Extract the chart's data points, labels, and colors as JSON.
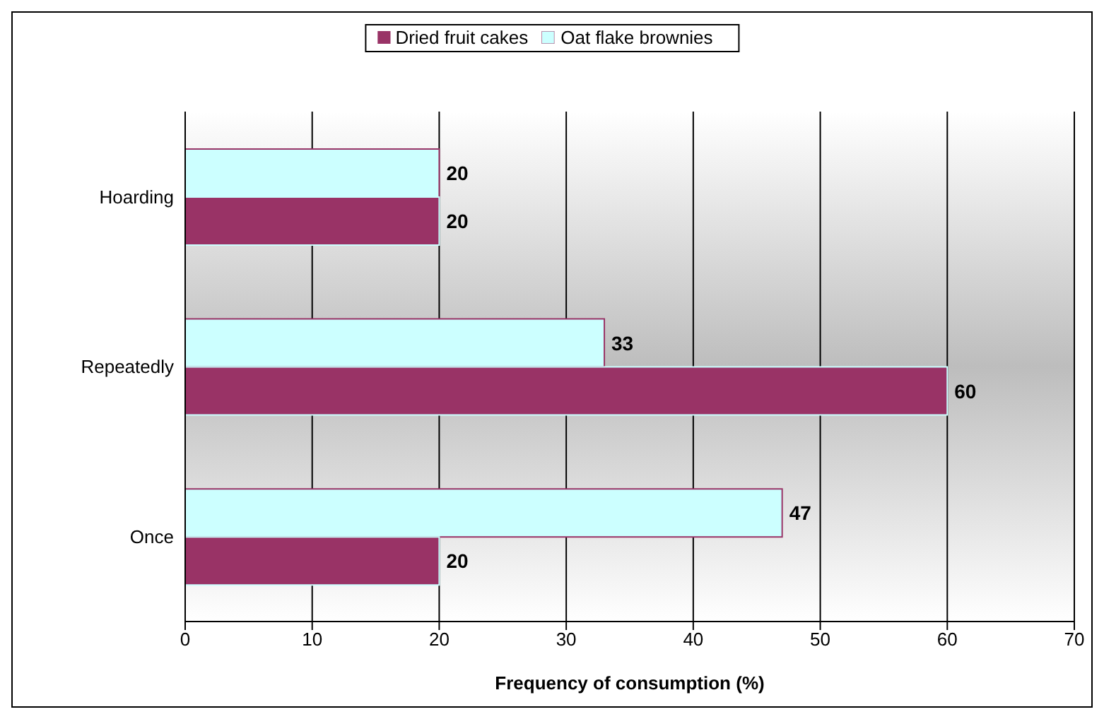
{
  "chart_data": {
    "type": "bar",
    "orientation": "horizontal",
    "xlabel": "Frequency of consumption (%)",
    "categories": [
      "Hoarding",
      "Repeatedly",
      "Once"
    ],
    "series": [
      {
        "name": "Oat flake brownies",
        "color": "#ccffff",
        "values": [
          20,
          33,
          47
        ]
      },
      {
        "name": "Dried fruit cakes",
        "color": "#993366",
        "values": [
          20,
          60,
          20
        ]
      }
    ],
    "xlim": [
      0,
      70
    ],
    "xticks": [
      0,
      10,
      20,
      30,
      40,
      50,
      60,
      70
    ],
    "grid": "x",
    "legend": "top",
    "data_labels": true
  }
}
